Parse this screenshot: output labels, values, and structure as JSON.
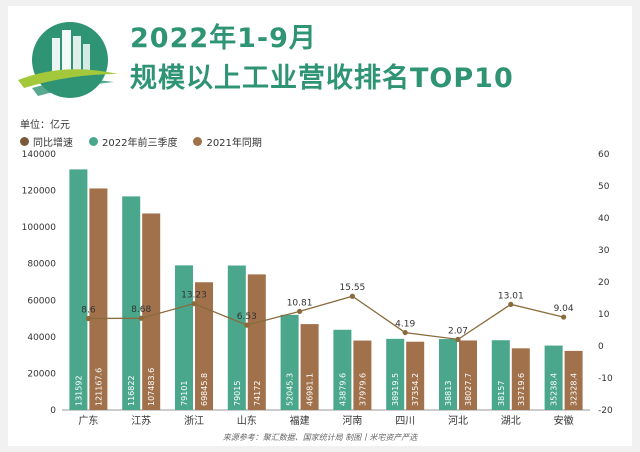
{
  "header": {
    "title_line1": "2022年1-9月",
    "title_line2": "规模以上工业营收排名TOP10"
  },
  "unit_label": "单位：亿元",
  "legend": [
    {
      "label": "同比增速",
      "color": "#7a5a3a"
    },
    {
      "label": "2022年前三季度",
      "color": "#4aa78c"
    },
    {
      "label": "2021年同期",
      "color": "#a0714b"
    }
  ],
  "source": "来源参考：聚汇数据、国家统计局 制图丨米宅资产严选",
  "colors": {
    "accent": "#2f9474",
    "bar2022": "#4aa78c",
    "bar2021": "#a0714b",
    "line": "#8a6b3c"
  },
  "chart_data": {
    "type": "bar",
    "categories": [
      "广东",
      "江苏",
      "浙江",
      "山东",
      "福建",
      "河南",
      "四川",
      "河北",
      "湖北",
      "安徽"
    ],
    "series": [
      {
        "name": "2022年前三季度",
        "type": "bar",
        "axis": "left",
        "values": [
          131592,
          116822,
          79101,
          79015,
          52045.3,
          43879.6,
          38919.5,
          38813,
          38157,
          35238.4
        ],
        "labels": [
          "131592",
          "116822",
          "79101",
          "79015",
          "52045.3",
          "43879.6",
          "38919.5",
          "38813",
          "38157",
          "35238.4"
        ]
      },
      {
        "name": "2021年同期",
        "type": "bar",
        "axis": "left",
        "values": [
          121167.6,
          107483.6,
          69845.8,
          74172,
          46981.1,
          37979.6,
          37354.2,
          38027.7,
          33719.6,
          32328.4
        ],
        "labels": [
          "121167.6",
          "107483.6",
          "69845.8",
          "74172",
          "46981.1",
          "37979.6",
          "37354.2",
          "38027.7",
          "33719.6",
          "32328.4"
        ]
      },
      {
        "name": "同比增速",
        "type": "line",
        "axis": "right",
        "values": [
          8.6,
          8.68,
          13.23,
          6.53,
          10.81,
          15.55,
          4.19,
          2.07,
          13.01,
          9.04
        ],
        "labels": [
          "8.6",
          "8.68",
          "13.23",
          "6.53",
          "10.81",
          "15.55",
          "4.19",
          "2.07",
          "13.01",
          "9.04"
        ]
      }
    ],
    "y_left": {
      "min": 0,
      "max": 140000,
      "ticks": [
        "0",
        "20000",
        "40000",
        "60000",
        "80000",
        "100000",
        "120000",
        "140000"
      ]
    },
    "y_right": {
      "min": -20,
      "max": 60,
      "ticks": [
        "-20",
        "-10",
        "0",
        "10",
        "20",
        "30",
        "40",
        "50",
        "60"
      ]
    },
    "legend_position": "top-left",
    "grid": false
  }
}
